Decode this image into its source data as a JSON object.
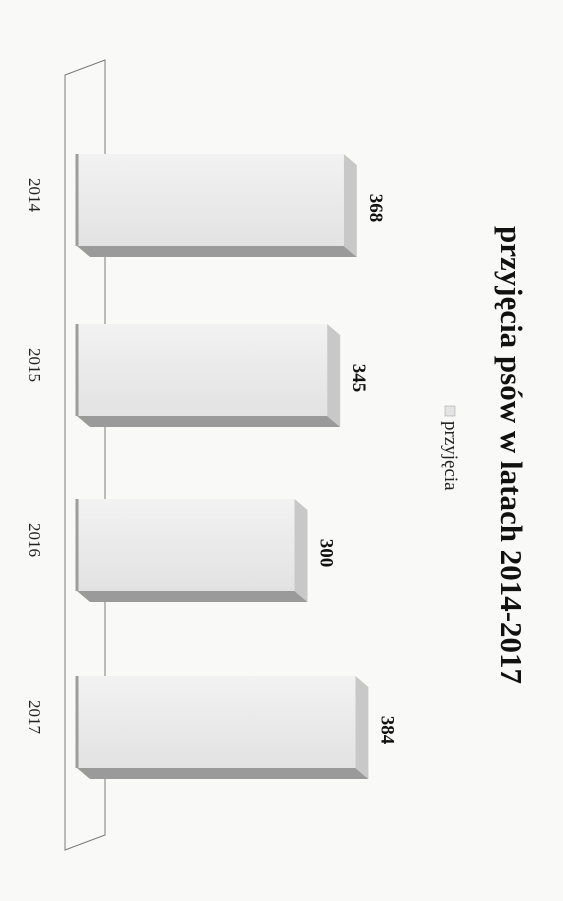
{
  "chart_data": {
    "type": "bar",
    "title": "przyjęcia psów w latach 2014-2017",
    "categories": [
      "2014",
      "2015",
      "2016",
      "2017"
    ],
    "series": [
      {
        "name": "przyjęcia",
        "values": [
          368,
          345,
          300,
          384
        ]
      }
    ],
    "data_labels": [
      "368",
      "345",
      "300",
      "384"
    ],
    "ylim": [
      0,
      400
    ],
    "grid": false,
    "legend_position": "top",
    "orientation": "rotated 90 degrees clockwise",
    "three_d": true,
    "colors": {
      "bar_front": "#ececec",
      "bar_top": "#c8c8c8",
      "bar_side": "#9a9a9a",
      "floor": "#777777"
    }
  }
}
